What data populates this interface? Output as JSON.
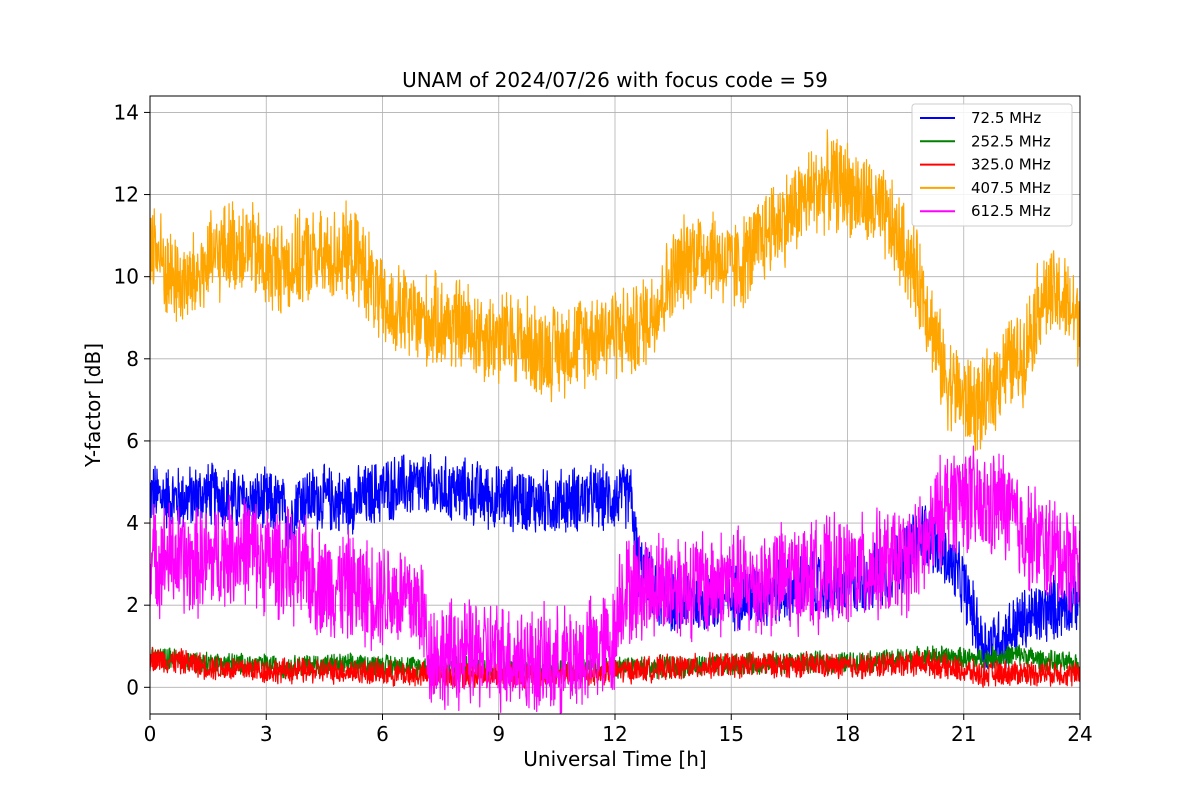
{
  "chart_data": {
    "type": "line",
    "title": "UNAM of 2024/07/26 with focus code = 59",
    "xlabel": "Universal Time [h]",
    "ylabel": "Y-factor [dB]",
    "xlim": [
      0,
      24
    ],
    "ylim": [
      -0.65,
      14.4
    ],
    "xticks": [
      0,
      3,
      6,
      9,
      12,
      15,
      18,
      21,
      24
    ],
    "yticks": [
      0,
      2,
      4,
      6,
      8,
      10,
      12,
      14
    ],
    "grid": true,
    "legend_position": "top-right",
    "series": [
      {
        "name": " 72.5 MHz",
        "color": "#0000ff",
        "noise": 0.9,
        "x": [
          0,
          0.5,
          1,
          1.5,
          2,
          2.5,
          3,
          3.4,
          3.6,
          3.8,
          4,
          4.5,
          5,
          5.5,
          6,
          6.5,
          7,
          7.5,
          8,
          8.5,
          9,
          9.5,
          10,
          10.5,
          11,
          11.5,
          12,
          12.4,
          12.6,
          13,
          13.5,
          14,
          14.5,
          15,
          15.5,
          16,
          16.5,
          17,
          17.5,
          18,
          18.5,
          19,
          19.5,
          20,
          20.5,
          21,
          21.5,
          22,
          22.5,
          23,
          23.5,
          24
        ],
        "values": [
          4.7,
          4.6,
          4.6,
          4.7,
          4.6,
          4.5,
          4.5,
          4.4,
          3.9,
          4.6,
          4.6,
          4.6,
          4.5,
          4.6,
          4.8,
          4.9,
          4.9,
          4.8,
          4.8,
          4.7,
          4.6,
          4.6,
          4.5,
          4.5,
          4.6,
          4.6,
          4.6,
          4.7,
          3.0,
          2.3,
          2.1,
          2.1,
          2.1,
          2.2,
          2.2,
          2.3,
          2.4,
          2.5,
          2.4,
          2.5,
          2.6,
          2.8,
          3.2,
          3.8,
          3.2,
          2.5,
          1.0,
          1.2,
          1.6,
          1.8,
          2.0,
          2.2
        ]
      },
      {
        "name": "252.5 MHz",
        "color": "#008000",
        "noise": 0.3,
        "x": [
          0,
          0.5,
          1,
          1.5,
          2,
          2.5,
          3,
          3.5,
          4,
          5,
          6,
          7,
          8,
          9,
          10,
          11,
          12,
          13,
          14,
          15,
          16,
          17,
          18,
          19,
          19.5,
          20,
          20.5,
          21,
          21.5,
          22,
          22.5,
          23,
          23.5,
          24
        ],
        "values": [
          0.75,
          0.7,
          0.65,
          0.6,
          0.6,
          0.55,
          0.55,
          0.5,
          0.55,
          0.55,
          0.55,
          0.5,
          0.5,
          0.45,
          0.45,
          0.45,
          0.5,
          0.5,
          0.5,
          0.55,
          0.6,
          0.6,
          0.6,
          0.65,
          0.7,
          0.75,
          0.75,
          0.7,
          0.7,
          0.75,
          0.8,
          0.65,
          0.6,
          0.55
        ]
      },
      {
        "name": "325.0 MHz",
        "color": "#ff0000",
        "noise": 0.35,
        "x": [
          0,
          0.5,
          1,
          1.5,
          2,
          2.5,
          3,
          3.5,
          4,
          5,
          6,
          7,
          8,
          9,
          10,
          11,
          12,
          13,
          14,
          15,
          16,
          17,
          18,
          19,
          19.5,
          20,
          20.5,
          21,
          21.5,
          22,
          22.5,
          23,
          23.5,
          24
        ],
        "values": [
          0.7,
          0.65,
          0.6,
          0.5,
          0.45,
          0.45,
          0.4,
          0.4,
          0.4,
          0.4,
          0.35,
          0.3,
          0.3,
          0.3,
          0.3,
          0.3,
          0.4,
          0.45,
          0.5,
          0.55,
          0.55,
          0.55,
          0.5,
          0.55,
          0.6,
          0.6,
          0.5,
          0.4,
          0.3,
          0.35,
          0.35,
          0.35,
          0.35,
          0.3
        ]
      },
      {
        "name": "407.5 MHz",
        "color": "#ffa500",
        "noise": 1.3,
        "x": [
          0,
          0.5,
          1,
          1.5,
          2,
          2.5,
          3,
          3.5,
          3.8,
          4,
          4.5,
          5,
          5.5,
          6,
          6.5,
          7,
          7.5,
          8,
          8.5,
          9,
          9.5,
          10,
          10.5,
          11,
          11.5,
          12,
          12.5,
          13,
          13.5,
          14,
          14.5,
          15,
          15.5,
          16,
          16.5,
          17,
          17.5,
          18,
          18.5,
          19,
          19.5,
          20,
          20.5,
          21,
          21.5,
          22,
          22.5,
          23,
          23.5,
          24
        ],
        "values": [
          11.0,
          10.0,
          9.8,
          10.3,
          10.7,
          10.8,
          10.2,
          10.3,
          10.3,
          10.5,
          10.4,
          10.6,
          10.3,
          9.2,
          9.1,
          8.9,
          8.9,
          8.8,
          8.6,
          8.5,
          8.5,
          8.2,
          8.2,
          8.4,
          8.6,
          8.7,
          8.6,
          9.2,
          10.0,
          10.6,
          10.6,
          10.2,
          10.5,
          11.2,
          11.5,
          12.0,
          12.3,
          12.2,
          11.8,
          11.4,
          10.6,
          9.5,
          7.6,
          7.0,
          6.8,
          7.8,
          8.0,
          9.5,
          9.5,
          8.9
        ]
      },
      {
        "name": "612.5 MHz",
        "color": "#ff00ff",
        "noise": 1.5,
        "x": [
          0,
          0.5,
          1,
          1.5,
          2,
          2.5,
          3,
          3.5,
          3.6,
          3.8,
          4,
          4.5,
          5,
          5.5,
          6,
          6.5,
          7,
          7.2,
          7.5,
          8,
          8.5,
          9,
          9.5,
          10,
          10.5,
          11,
          11.5,
          12,
          12.1,
          12.5,
          13,
          13.5,
          14,
          14.5,
          15,
          15.5,
          16,
          16.5,
          17,
          17.5,
          18,
          18.5,
          19,
          19.5,
          20,
          20.5,
          21,
          21.5,
          22,
          22.5,
          23,
          23.5,
          24
        ],
        "values": [
          3.1,
          3.2,
          3.0,
          3.1,
          3.3,
          3.4,
          3.1,
          3.0,
          3.0,
          2.7,
          2.8,
          2.5,
          2.5,
          2.3,
          2.3,
          2.2,
          2.0,
          0.9,
          0.8,
          0.8,
          0.8,
          0.8,
          0.7,
          0.6,
          0.6,
          0.7,
          0.9,
          1.1,
          2.3,
          2.4,
          2.5,
          2.5,
          2.5,
          2.5,
          2.6,
          2.5,
          2.6,
          2.7,
          2.7,
          2.8,
          2.8,
          2.9,
          3.0,
          3.1,
          3.4,
          4.5,
          4.7,
          4.3,
          4.5,
          3.8,
          3.5,
          3.2,
          3.1
        ]
      }
    ]
  }
}
